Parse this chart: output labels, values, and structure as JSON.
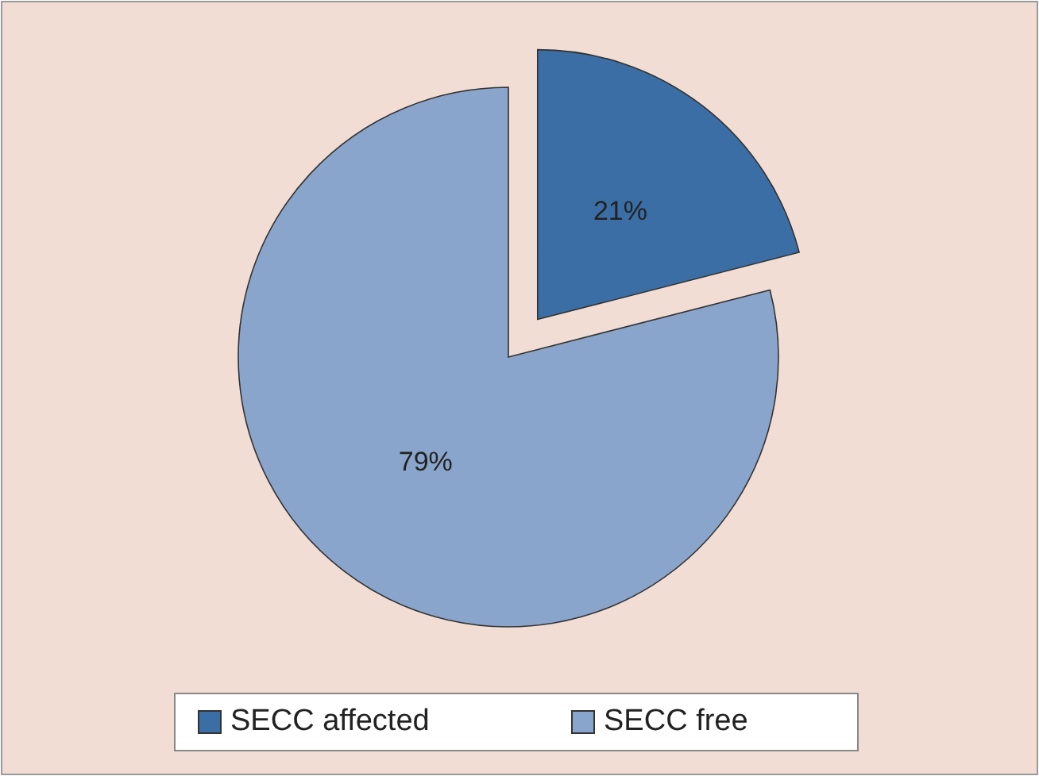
{
  "chart_data": {
    "type": "pie",
    "categories": [
      "SECC affected",
      "SECC free"
    ],
    "values": [
      21,
      79
    ],
    "colors": [
      "#3a6ea5",
      "#8aa5cc"
    ],
    "value_labels": [
      "21%",
      "79%"
    ],
    "legend": "bottom"
  }
}
